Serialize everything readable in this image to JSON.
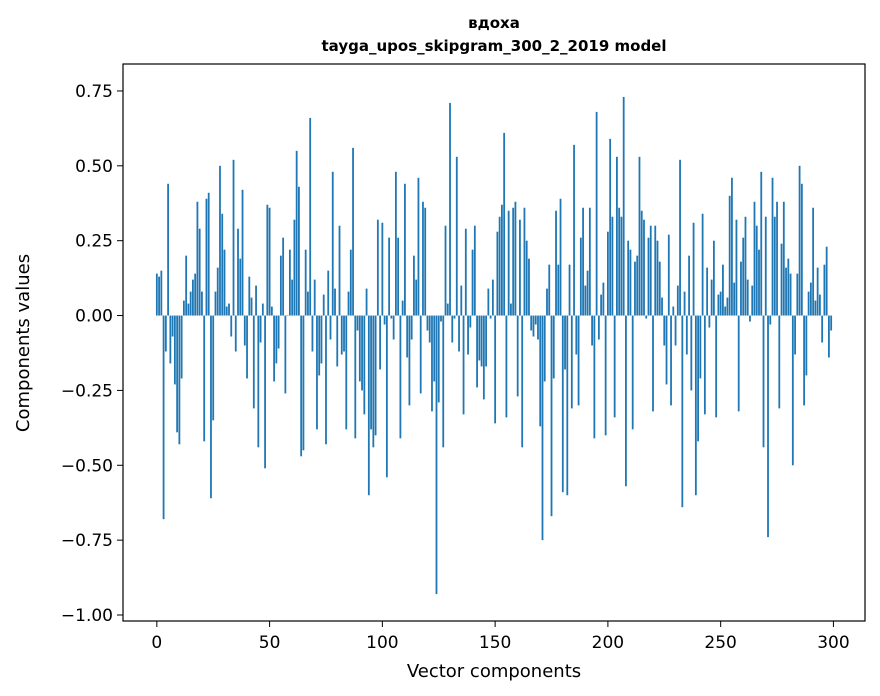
{
  "chart_data": {
    "type": "bar",
    "title": "вдоха",
    "subtitle": "tayga_upos_skipgram_300_2_2019 model",
    "xlabel": "Vector components",
    "ylabel": "Components values",
    "xlim": [
      -15,
      314
    ],
    "ylim": [
      -1.02,
      0.84
    ],
    "xticks": [
      0,
      50,
      100,
      150,
      200,
      250,
      300
    ],
    "xtick_labels": [
      "0",
      "50",
      "100",
      "150",
      "200",
      "250",
      "300"
    ],
    "yticks": [
      0.75,
      0.5,
      0.25,
      0.0,
      -0.25,
      -0.5,
      -0.75,
      -1.0
    ],
    "ytick_labels": [
      "0.75",
      "0.50",
      "0.25",
      "0.00",
      "−0.25",
      "−0.50",
      "−0.75",
      "−1.00"
    ],
    "grid": false,
    "bar_color": "#1f77b4",
    "x": [
      0,
      1,
      2,
      3,
      4,
      5,
      6,
      7,
      8,
      9,
      10,
      11,
      12,
      13,
      14,
      15,
      16,
      17,
      18,
      19,
      20,
      21,
      22,
      23,
      24,
      25,
      26,
      27,
      28,
      29,
      30,
      31,
      32,
      33,
      34,
      35,
      36,
      37,
      38,
      39,
      40,
      41,
      42,
      43,
      44,
      45,
      46,
      47,
      48,
      49,
      50,
      51,
      52,
      53,
      54,
      55,
      56,
      57,
      58,
      59,
      60,
      61,
      62,
      63,
      64,
      65,
      66,
      67,
      68,
      69,
      70,
      71,
      72,
      73,
      74,
      75,
      76,
      77,
      78,
      79,
      80,
      81,
      82,
      83,
      84,
      85,
      86,
      87,
      88,
      89,
      90,
      91,
      92,
      93,
      94,
      95,
      96,
      97,
      98,
      99,
      100,
      101,
      102,
      103,
      104,
      105,
      106,
      107,
      108,
      109,
      110,
      111,
      112,
      113,
      114,
      115,
      116,
      117,
      118,
      119,
      120,
      121,
      122,
      123,
      124,
      125,
      126,
      127,
      128,
      129,
      130,
      131,
      132,
      133,
      134,
      135,
      136,
      137,
      138,
      139,
      140,
      141,
      142,
      143,
      144,
      145,
      146,
      147,
      148,
      149,
      150,
      151,
      152,
      153,
      154,
      155,
      156,
      157,
      158,
      159,
      160,
      161,
      162,
      163,
      164,
      165,
      166,
      167,
      168,
      169,
      170,
      171,
      172,
      173,
      174,
      175,
      176,
      177,
      178,
      179,
      180,
      181,
      182,
      183,
      184,
      185,
      186,
      187,
      188,
      189,
      190,
      191,
      192,
      193,
      194,
      195,
      196,
      197,
      198,
      199,
      200,
      201,
      202,
      203,
      204,
      205,
      206,
      207,
      208,
      209,
      210,
      211,
      212,
      213,
      214,
      215,
      216,
      217,
      218,
      219,
      220,
      221,
      222,
      223,
      224,
      225,
      226,
      227,
      228,
      229,
      230,
      231,
      232,
      233,
      234,
      235,
      236,
      237,
      238,
      239,
      240,
      241,
      242,
      243,
      244,
      245,
      246,
      247,
      248,
      249,
      250,
      251,
      252,
      253,
      254,
      255,
      256,
      257,
      258,
      259,
      260,
      261,
      262,
      263,
      264,
      265,
      266,
      267,
      268,
      269,
      270,
      271,
      272,
      273,
      274,
      275,
      276,
      277,
      278,
      279,
      280,
      281,
      282,
      283,
      284,
      285,
      286,
      287,
      288,
      289,
      290,
      291,
      292,
      293,
      294,
      295,
      296,
      297,
      298,
      299
    ],
    "values": [
      0.14,
      0.13,
      0.15,
      -0.68,
      -0.12,
      0.44,
      -0.16,
      -0.07,
      -0.23,
      -0.39,
      -0.43,
      -0.21,
      0.05,
      0.2,
      0.04,
      0.08,
      0.12,
      0.14,
      0.38,
      0.29,
      0.08,
      -0.42,
      0.39,
      0.41,
      -0.61,
      -0.35,
      0.08,
      0.16,
      0.5,
      0.34,
      0.22,
      0.03,
      0.04,
      -0.07,
      0.52,
      -0.12,
      0.29,
      0.19,
      0.42,
      -0.1,
      -0.21,
      0.13,
      0.06,
      -0.31,
      0.1,
      -0.44,
      -0.09,
      0.04,
      -0.51,
      0.37,
      0.36,
      0.03,
      -0.22,
      -0.16,
      -0.11,
      0.2,
      0.26,
      -0.26,
      0.0,
      0.22,
      0.12,
      0.32,
      0.55,
      0.43,
      -0.47,
      -0.45,
      0.22,
      0.08,
      0.66,
      -0.12,
      0.12,
      -0.38,
      -0.2,
      -0.16,
      0.07,
      -0.43,
      0.15,
      -0.08,
      0.48,
      0.09,
      -0.17,
      0.3,
      -0.13,
      -0.12,
      -0.38,
      0.08,
      0.22,
      0.56,
      -0.41,
      -0.05,
      -0.22,
      -0.25,
      -0.33,
      0.09,
      -0.6,
      -0.38,
      -0.44,
      -0.4,
      0.32,
      -0.18,
      0.31,
      -0.03,
      -0.54,
      0.26,
      -0.01,
      -0.08,
      0.48,
      0.26,
      -0.41,
      0.05,
      0.44,
      -0.14,
      -0.3,
      -0.08,
      0.2,
      0.12,
      0.46,
      -0.26,
      0.38,
      0.36,
      -0.05,
      -0.09,
      -0.32,
      -0.22,
      -0.93,
      -0.29,
      -0.02,
      -0.44,
      0.3,
      0.04,
      0.71,
      -0.09,
      -0.01,
      0.53,
      -0.12,
      0.1,
      -0.33,
      0.29,
      -0.13,
      -0.04,
      0.22,
      0.3,
      -0.24,
      -0.15,
      -0.17,
      -0.28,
      -0.17,
      0.09,
      -0.01,
      0.12,
      -0.36,
      0.28,
      0.33,
      0.37,
      0.61,
      -0.34,
      0.35,
      0.04,
      0.36,
      0.38,
      -0.27,
      0.32,
      -0.44,
      0.36,
      0.25,
      0.19,
      -0.05,
      -0.07,
      -0.03,
      -0.08,
      -0.37,
      -0.75,
      -0.22,
      0.09,
      0.17,
      -0.67,
      -0.21,
      0.35,
      0.17,
      0.39,
      -0.59,
      -0.18,
      -0.6,
      0.17,
      -0.31,
      0.57,
      -0.13,
      -0.3,
      0.26,
      0.36,
      0.1,
      0.15,
      0.36,
      -0.1,
      -0.41,
      0.68,
      -0.08,
      0.07,
      0.11,
      -0.4,
      0.28,
      0.59,
      0.33,
      -0.34,
      0.53,
      0.36,
      0.33,
      0.73,
      -0.57,
      0.25,
      0.22,
      -0.38,
      0.18,
      0.2,
      0.53,
      0.35,
      0.32,
      -0.01,
      0.26,
      0.3,
      -0.32,
      0.3,
      0.25,
      0.18,
      0.06,
      -0.1,
      -0.23,
      0.27,
      -0.3,
      0.03,
      -0.1,
      0.1,
      0.52,
      -0.64,
      0.08,
      -0.13,
      0.2,
      -0.25,
      0.31,
      -0.6,
      -0.42,
      -0.21,
      0.34,
      -0.33,
      0.16,
      -0.04,
      0.12,
      0.25,
      -0.34,
      0.07,
      0.08,
      0.17,
      0.03,
      0.06,
      0.4,
      0.46,
      0.11,
      0.32,
      -0.32,
      0.18,
      0.26,
      0.33,
      0.12,
      -0.02,
      0.1,
      0.38,
      0.3,
      0.22,
      0.48,
      -0.44,
      0.33,
      -0.74,
      -0.03,
      0.46,
      0.33,
      0.38,
      -0.31,
      0.24,
      0.38,
      0.16,
      0.19,
      0.14,
      -0.5,
      -0.13,
      0.14,
      0.5,
      0.44,
      -0.3,
      -0.2,
      0.08,
      0.11,
      0.36,
      0.05,
      0.16,
      0.07,
      -0.09,
      0.17,
      0.23,
      -0.14,
      -0.05
    ]
  }
}
